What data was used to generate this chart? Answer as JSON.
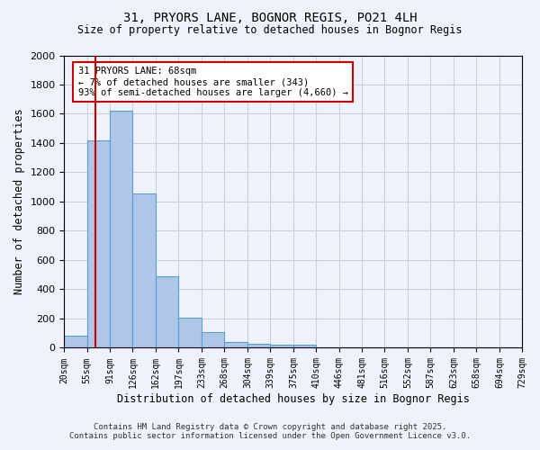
{
  "title1": "31, PRYORS LANE, BOGNOR REGIS, PO21 4LH",
  "title2": "Size of property relative to detached houses in Bognor Regis",
  "xlabel": "Distribution of detached houses by size in Bognor Regis",
  "ylabel": "Number of detached properties",
  "bar_values": [
    80,
    1420,
    1620,
    1055,
    490,
    205,
    105,
    40,
    30,
    20,
    20,
    0,
    0,
    0,
    0,
    0,
    0,
    0,
    0,
    0
  ],
  "bin_edges": [
    20,
    55,
    91,
    126,
    162,
    197,
    233,
    268,
    304,
    339,
    375,
    410,
    446,
    481,
    516,
    552,
    587,
    623,
    658,
    694,
    729
  ],
  "tick_labels": [
    "20sqm",
    "55sqm",
    "91sqm",
    "126sqm",
    "162sqm",
    "197sqm",
    "233sqm",
    "268sqm",
    "304sqm",
    "339sqm",
    "375sqm",
    "410sqm",
    "446sqm",
    "481sqm",
    "516sqm",
    "552sqm",
    "587sqm",
    "623sqm",
    "658sqm",
    "694sqm",
    "729sqm"
  ],
  "bar_color": "#aec6e8",
  "bar_edge_color": "#5a9fd4",
  "vline_x": 68,
  "vline_color": "#cc0000",
  "ylim": [
    0,
    2000
  ],
  "yticks": [
    0,
    200,
    400,
    600,
    800,
    1000,
    1200,
    1400,
    1600,
    1800,
    2000
  ],
  "annotation_text": "31 PRYORS LANE: 68sqm\n← 7% of detached houses are smaller (343)\n93% of semi-detached houses are larger (4,660) →",
  "annotation_box_color": "#ffffff",
  "annotation_box_edge_color": "#cc0000",
  "footer1": "Contains HM Land Registry data © Crown copyright and database right 2025.",
  "footer2": "Contains public sector information licensed under the Open Government Licence v3.0.",
  "bg_color": "#eef2fb",
  "plot_bg_color": "#eef2fb",
  "grid_color": "#c8d0e0"
}
